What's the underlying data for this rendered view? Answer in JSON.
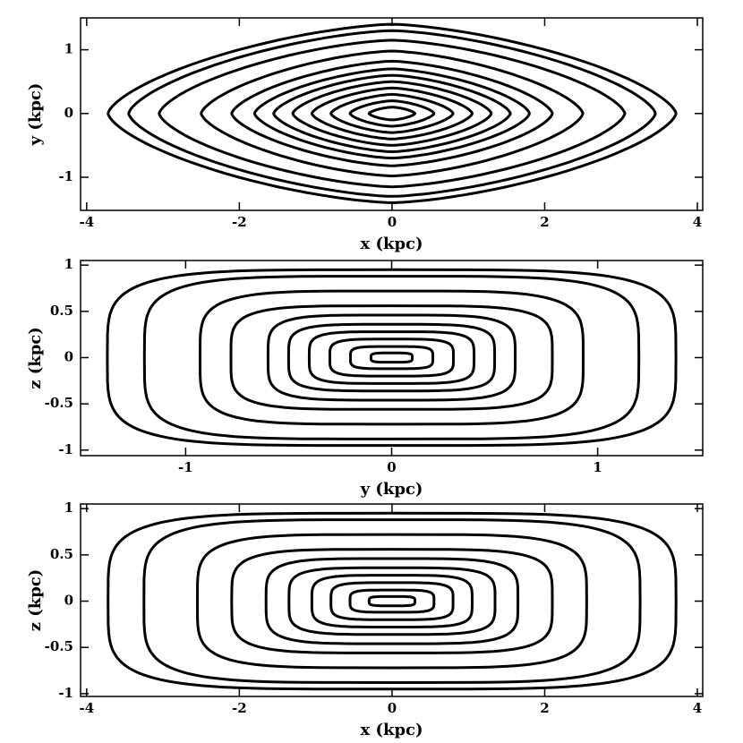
{
  "chart_data": [
    {
      "type": "contour",
      "xlabel": "x (kpc)",
      "ylabel": "y (kpc)",
      "xlim": [
        -4.08,
        4.07
      ],
      "ylim": [
        -1.52,
        1.5
      ],
      "xticks": [
        -4,
        -2,
        0,
        2,
        4
      ],
      "yticks": [
        -1,
        0,
        1
      ],
      "contour_shape": "diamond",
      "color": "#000000",
      "contours": [
        [
          0.3,
          0.1
        ],
        [
          0.55,
          0.2
        ],
        [
          0.8,
          0.3
        ],
        [
          1.05,
          0.4
        ],
        [
          1.3,
          0.5
        ],
        [
          1.55,
          0.6
        ],
        [
          1.8,
          0.7
        ],
        [
          2.1,
          0.82
        ],
        [
          2.5,
          0.98
        ],
        [
          3.05,
          1.15
        ],
        [
          3.45,
          1.3
        ],
        [
          3.72,
          1.4
        ]
      ]
    },
    {
      "type": "contour",
      "xlabel": "y (kpc)",
      "ylabel": "z (kpc)",
      "xlim": [
        -1.51,
        1.51
      ],
      "ylim": [
        -1.06,
        1.05
      ],
      "xticks": [
        -1,
        0,
        1
      ],
      "yticks": [
        -1,
        -0.5,
        0,
        0.5,
        1
      ],
      "contour_shape": "box",
      "color": "#000000",
      "contours": [
        [
          0.1,
          0.05
        ],
        [
          0.2,
          0.12
        ],
        [
          0.3,
          0.2
        ],
        [
          0.4,
          0.28
        ],
        [
          0.5,
          0.36
        ],
        [
          0.6,
          0.46
        ],
        [
          0.78,
          0.56
        ],
        [
          0.93,
          0.72
        ],
        [
          1.2,
          0.88
        ],
        [
          1.38,
          0.95
        ]
      ]
    },
    {
      "type": "contour",
      "xlabel": "x (kpc)",
      "ylabel": "z (kpc)",
      "xlim": [
        -4.08,
        4.07
      ],
      "ylim": [
        -1.03,
        1.05
      ],
      "xticks": [
        -4,
        -2,
        0,
        2,
        4
      ],
      "yticks": [
        -1,
        -0.5,
        0,
        0.5,
        1
      ],
      "contour_shape": "box",
      "color": "#000000",
      "contours": [
        [
          0.3,
          0.05
        ],
        [
          0.55,
          0.12
        ],
        [
          0.8,
          0.2
        ],
        [
          1.05,
          0.28
        ],
        [
          1.35,
          0.36
        ],
        [
          1.65,
          0.46
        ],
        [
          2.1,
          0.56
        ],
        [
          2.55,
          0.72
        ],
        [
          3.25,
          0.88
        ],
        [
          3.72,
          0.95
        ]
      ]
    }
  ]
}
